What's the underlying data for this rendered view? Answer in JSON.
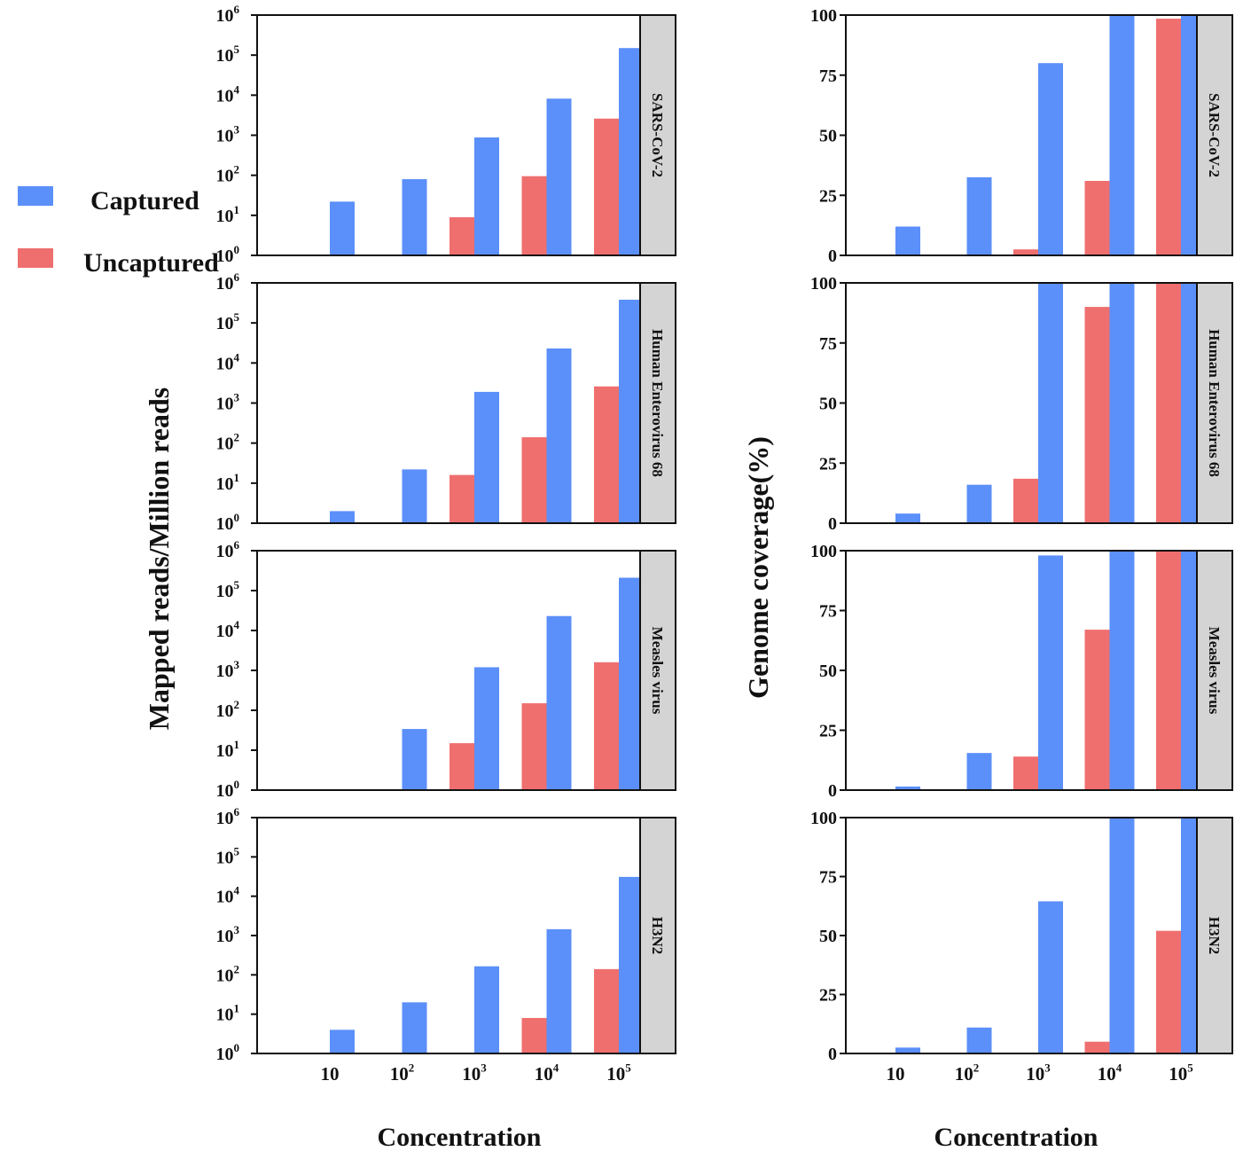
{
  "colors": {
    "captured": "#5b8ff9",
    "uncaptured": "#ef6f6f",
    "facet_strip": "#d4d4d4"
  },
  "legend": [
    {
      "key": "captured",
      "label": "Captured"
    },
    {
      "key": "uncaptured",
      "label": "Uncaptured"
    }
  ],
  "panels": {
    "left_ylabel": "Mapped reads/Million reads",
    "right_ylabel": "Genome coverage(%)",
    "xlabel": "Concentration"
  },
  "chart_data": [
    {
      "type": "bar",
      "scale": "log",
      "facet": "SARS-CoV-2",
      "categories": [
        "10",
        "10^2",
        "10^3",
        "10^4",
        "10^5"
      ],
      "ylim": [
        1,
        1000000
      ],
      "xlabel": "Concentration",
      "ylabel": "Mapped reads/Million reads",
      "series": [
        {
          "name": "Uncaptured",
          "values": [
            null,
            null,
            9,
            95,
            2600
          ]
        },
        {
          "name": "Captured",
          "values": [
            22,
            80,
            880,
            8200,
            150000
          ]
        }
      ]
    },
    {
      "type": "bar",
      "scale": "log",
      "facet": "Human Enterovirus 68",
      "categories": [
        "10",
        "10^2",
        "10^3",
        "10^4",
        "10^5"
      ],
      "ylim": [
        1,
        1000000
      ],
      "xlabel": "Concentration",
      "ylabel": "Mapped reads/Million reads",
      "series": [
        {
          "name": "Uncaptured",
          "values": [
            null,
            null,
            16,
            140,
            2600
          ]
        },
        {
          "name": "Captured",
          "values": [
            2,
            22,
            1900,
            23000,
            380000
          ]
        }
      ]
    },
    {
      "type": "bar",
      "scale": "log",
      "facet": "Measles virus",
      "categories": [
        "10",
        "10^2",
        "10^3",
        "10^4",
        "10^5"
      ],
      "ylim": [
        1,
        1000000
      ],
      "xlabel": "Concentration",
      "ylabel": "Mapped reads/Million reads",
      "series": [
        {
          "name": "Uncaptured",
          "values": [
            null,
            null,
            15,
            150,
            1600
          ]
        },
        {
          "name": "Captured",
          "values": [
            null,
            34,
            1200,
            23000,
            210000
          ]
        }
      ]
    },
    {
      "type": "bar",
      "scale": "log",
      "facet": "H3N2",
      "categories": [
        "10",
        "10^2",
        "10^3",
        "10^4",
        "10^5"
      ],
      "ylim": [
        1,
        1000000
      ],
      "xlabel": "Concentration",
      "ylabel": "Mapped reads/Million reads",
      "series": [
        {
          "name": "Uncaptured",
          "values": [
            null,
            null,
            null,
            8,
            140
          ]
        },
        {
          "name": "Captured",
          "values": [
            4,
            20,
            165,
            1450,
            31000
          ]
        }
      ]
    },
    {
      "type": "bar",
      "scale": "linear",
      "facet": "SARS-CoV-2",
      "categories": [
        "10",
        "10^2",
        "10^3",
        "10^4",
        "10^5"
      ],
      "ylim": [
        0,
        100
      ],
      "yticks": [
        0,
        25,
        50,
        75,
        100
      ],
      "xlabel": "Concentration",
      "ylabel": "Genome coverage(%)",
      "series": [
        {
          "name": "Uncaptured",
          "values": [
            null,
            null,
            2.5,
            31,
            98.5
          ]
        },
        {
          "name": "Captured",
          "values": [
            12,
            32.5,
            80,
            100,
            100
          ]
        }
      ]
    },
    {
      "type": "bar",
      "scale": "linear",
      "facet": "Human Enterovirus 68",
      "categories": [
        "10",
        "10^2",
        "10^3",
        "10^4",
        "10^5"
      ],
      "ylim": [
        0,
        100
      ],
      "yticks": [
        0,
        25,
        50,
        75,
        100
      ],
      "xlabel": "Concentration",
      "ylabel": "Genome coverage(%)",
      "series": [
        {
          "name": "Uncaptured",
          "values": [
            null,
            null,
            18.5,
            90,
            100
          ]
        },
        {
          "name": "Captured",
          "values": [
            4,
            16,
            100,
            100,
            100
          ]
        }
      ]
    },
    {
      "type": "bar",
      "scale": "linear",
      "facet": "Measles virus",
      "categories": [
        "10",
        "10^2",
        "10^3",
        "10^4",
        "10^5"
      ],
      "ylim": [
        0,
        100
      ],
      "yticks": [
        0,
        25,
        50,
        75,
        100
      ],
      "xlabel": "Concentration",
      "ylabel": "Genome coverage(%)",
      "series": [
        {
          "name": "Uncaptured",
          "values": [
            null,
            null,
            14,
            67,
            100
          ]
        },
        {
          "name": "Captured",
          "values": [
            1.5,
            15.5,
            98,
            100,
            100
          ]
        }
      ]
    },
    {
      "type": "bar",
      "scale": "linear",
      "facet": "H3N2",
      "categories": [
        "10",
        "10^2",
        "10^3",
        "10^4",
        "10^5"
      ],
      "ylim": [
        0,
        100
      ],
      "yticks": [
        0,
        25,
        50,
        75,
        100
      ],
      "xlabel": "Concentration",
      "ylabel": "Genome coverage(%)",
      "series": [
        {
          "name": "Uncaptured",
          "values": [
            null,
            null,
            null,
            5,
            52
          ]
        },
        {
          "name": "Captured",
          "values": [
            2.5,
            11,
            64.5,
            100,
            100
          ]
        }
      ]
    }
  ]
}
